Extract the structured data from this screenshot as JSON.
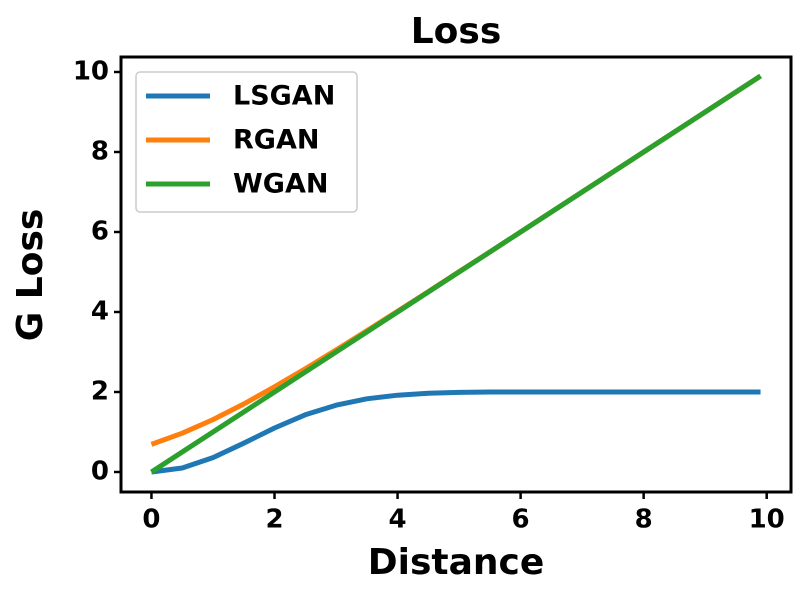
{
  "chart_data": {
    "type": "line",
    "title": "Loss",
    "x_label": "Distance",
    "y_label": "G Loss",
    "x": [
      0,
      0.5,
      1,
      1.5,
      2,
      2.5,
      3,
      3.5,
      4,
      4.5,
      5,
      5.5,
      6,
      6.5,
      7,
      7.5,
      8,
      8.5,
      9,
      9.5,
      9.9
    ],
    "series": [
      {
        "name": "LSGAN",
        "color": "#1f77b4",
        "values": [
          0,
          0.1,
          0.36,
          0.72,
          1.1,
          1.43,
          1.67,
          1.83,
          1.92,
          1.97,
          1.99,
          2.0,
          2.0,
          2.0,
          2.0,
          2.0,
          2.0,
          2.0,
          2.0,
          2.0,
          2.0
        ]
      },
      {
        "name": "RGAN",
        "color": "#ff7f0e",
        "values": [
          0.69,
          0.97,
          1.31,
          1.7,
          2.13,
          2.58,
          3.05,
          3.53,
          4.02,
          4.51,
          5.01,
          5.5,
          6.0,
          6.5,
          7.0,
          7.5,
          8.0,
          8.5,
          9.0,
          9.5,
          9.9
        ]
      },
      {
        "name": "WGAN",
        "color": "#2ca02c",
        "values": [
          0,
          0.5,
          1,
          1.5,
          2,
          2.5,
          3,
          3.5,
          4,
          4.5,
          5,
          5.5,
          6,
          6.5,
          7,
          7.5,
          8,
          8.5,
          9,
          9.5,
          9.9
        ]
      }
    ],
    "xlim": [
      -0.495,
      10.395
    ],
    "ylim": [
      -0.5,
      10.375
    ],
    "xticks": [
      0,
      2,
      4,
      6,
      8,
      10
    ],
    "yticks": [
      0,
      2,
      4,
      6,
      8,
      10
    ],
    "grid": false,
    "legend": "upper left"
  }
}
